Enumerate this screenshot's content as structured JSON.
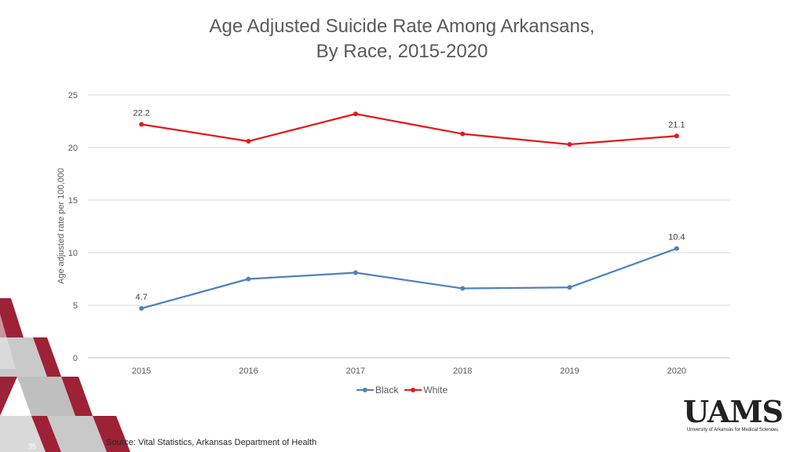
{
  "chart_data": {
    "type": "line",
    "title_lines": [
      "Age Adjusted Suicide Rate Among Arkansans,",
      "By Race, 2015-2020"
    ],
    "xlabel": "",
    "ylabel": "Age adjusted rate per 100,000",
    "x": [
      "2015",
      "2016",
      "2017",
      "2018",
      "2019",
      "2020"
    ],
    "ylim": [
      0,
      25
    ],
    "yticks": [
      0,
      5,
      10,
      15,
      20,
      25
    ],
    "grid": true,
    "legend_position": "bottom",
    "series": [
      {
        "name": "Black",
        "color": "#4F81BD",
        "values": [
          4.7,
          7.5,
          8.1,
          6.6,
          6.7,
          10.4
        ],
        "data_labels": [
          "4.7",
          "",
          "",
          "",
          "",
          "10.4"
        ]
      },
      {
        "name": "White",
        "color": "#E3191C",
        "values": [
          22.2,
          20.6,
          23.2,
          21.3,
          20.3,
          21.1
        ],
        "data_labels": [
          "22.2",
          "",
          "",
          "",
          "",
          "21.1"
        ]
      }
    ]
  },
  "footer": {
    "source": "Source: Vital Statistics, Arkansas Department of Health",
    "slide_number": "35"
  },
  "logo": {
    "wordmark": "UAMS",
    "subtitle": "University of Arkansas for Medical Sciences"
  },
  "colors": {
    "decor_red": "#9D2235",
    "decor_gray": "#BFBFBF",
    "decor_light": "#E6E6E6"
  }
}
